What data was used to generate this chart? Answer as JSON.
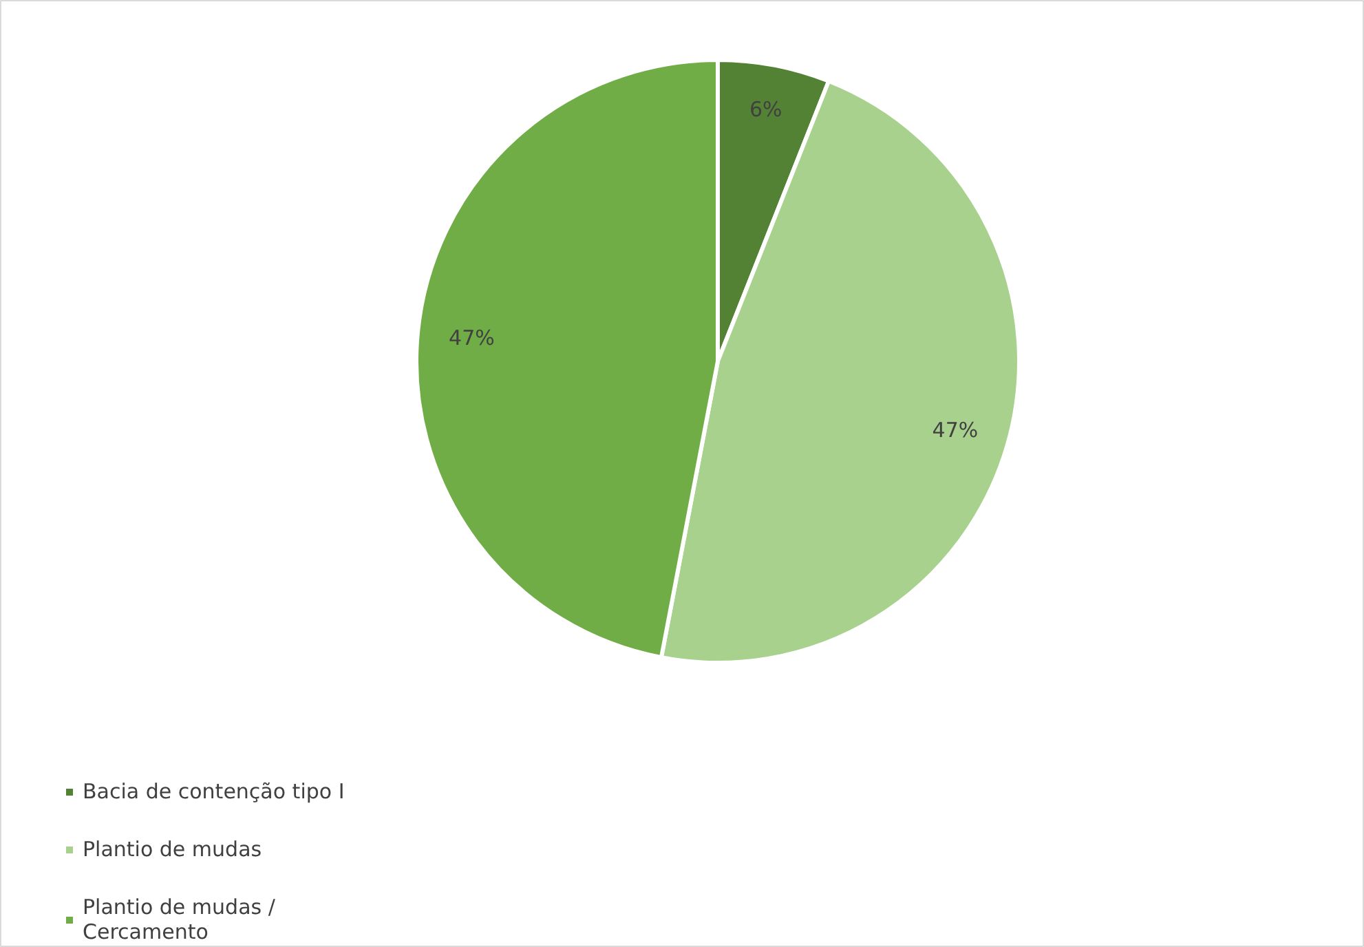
{
  "chart_data": {
    "type": "pie",
    "categories": [
      "Bacia de contenção tipo I",
      "Plantio de mudas",
      "Plantio de mudas / Cercamento"
    ],
    "values": [
      6,
      47,
      47
    ],
    "colors": [
      "#548235",
      "#a9d18e",
      "#70ad47"
    ],
    "value_labels": [
      "6%",
      "47%",
      "47%"
    ],
    "legend": "bottom left"
  }
}
